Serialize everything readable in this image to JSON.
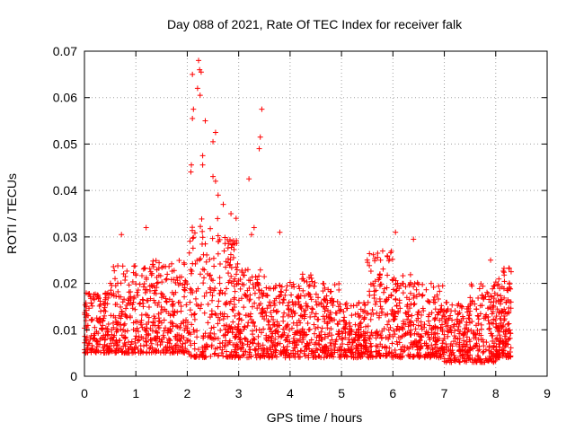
{
  "chart_data": {
    "type": "scatter",
    "title": "Day 088 of 2021, Rate Of TEC Index for receiver falk",
    "xlabel": "GPS time / hours",
    "ylabel": "ROTI / TECUs",
    "xlim": [
      0,
      9
    ],
    "ylim": [
      0,
      0.07
    ],
    "xticks": [
      0,
      1,
      2,
      3,
      4,
      5,
      6,
      7,
      8,
      9
    ],
    "yticks": [
      0,
      0.01,
      0.02,
      0.03,
      0.04,
      0.05,
      0.06,
      0.07
    ],
    "ytick_labels": [
      "0",
      "0.01",
      "0.02",
      "0.03",
      "0.04",
      "0.05",
      "0.06",
      "0.07"
    ],
    "grid": true,
    "marker": "+",
    "color": "#ff0000",
    "series": [
      {
        "name": "ROTI",
        "notable_points": [
          [
            0.72,
            0.0305
          ],
          [
            1.2,
            0.032
          ],
          [
            2.22,
            0.068
          ],
          [
            2.24,
            0.066
          ],
          [
            2.27,
            0.0655
          ],
          [
            2.1,
            0.065
          ],
          [
            2.2,
            0.062
          ],
          [
            2.25,
            0.0605
          ],
          [
            2.12,
            0.0575
          ],
          [
            2.1,
            0.0555
          ],
          [
            2.35,
            0.055
          ],
          [
            2.55,
            0.0525
          ],
          [
            2.5,
            0.0505
          ],
          [
            2.08,
            0.0455
          ],
          [
            2.07,
            0.044
          ],
          [
            2.3,
            0.0475
          ],
          [
            2.3,
            0.0455
          ],
          [
            2.5,
            0.043
          ],
          [
            2.55,
            0.042
          ],
          [
            2.6,
            0.039
          ],
          [
            2.7,
            0.037
          ],
          [
            2.85,
            0.035
          ],
          [
            2.95,
            0.034
          ],
          [
            3.45,
            0.0575
          ],
          [
            3.42,
            0.0515
          ],
          [
            3.4,
            0.049
          ],
          [
            3.2,
            0.0425
          ],
          [
            3.3,
            0.032
          ],
          [
            3.25,
            0.0305
          ],
          [
            3.8,
            0.031
          ],
          [
            6.05,
            0.031
          ],
          [
            6.4,
            0.0295
          ],
          [
            7.9,
            0.025
          ],
          [
            8.3,
            0.0225
          ]
        ],
        "activity_windows": [
          {
            "x_range": [
              0.0,
              0.5
            ],
            "y_range": [
              0.005,
              0.018
            ]
          },
          {
            "x_range": [
              0.5,
              1.0
            ],
            "y_range": [
              0.005,
              0.024
            ]
          },
          {
            "x_range": [
              1.0,
              1.5
            ],
            "y_range": [
              0.005,
              0.025
            ]
          },
          {
            "x_range": [
              1.5,
              2.0
            ],
            "y_range": [
              0.005,
              0.025
            ]
          },
          {
            "x_range": [
              2.0,
              2.6
            ],
            "y_range": [
              0.004,
              0.034
            ]
          },
          {
            "x_range": [
              2.6,
              3.0
            ],
            "y_range": [
              0.004,
              0.03
            ]
          },
          {
            "x_range": [
              3.0,
              3.5
            ],
            "y_range": [
              0.004,
              0.023
            ]
          },
          {
            "x_range": [
              3.5,
              4.0
            ],
            "y_range": [
              0.004,
              0.02
            ]
          },
          {
            "x_range": [
              4.0,
              4.5
            ],
            "y_range": [
              0.004,
              0.022
            ]
          },
          {
            "x_range": [
              4.5,
              5.0
            ],
            "y_range": [
              0.004,
              0.02
            ]
          },
          {
            "x_range": [
              5.0,
              5.5
            ],
            "y_range": [
              0.004,
              0.016
            ]
          },
          {
            "x_range": [
              5.5,
              6.0
            ],
            "y_range": [
              0.004,
              0.027
            ]
          },
          {
            "x_range": [
              6.0,
              6.5
            ],
            "y_range": [
              0.004,
              0.022
            ]
          },
          {
            "x_range": [
              6.5,
              7.0
            ],
            "y_range": [
              0.004,
              0.02
            ]
          },
          {
            "x_range": [
              7.0,
              7.5
            ],
            "y_range": [
              0.003,
              0.016
            ]
          },
          {
            "x_range": [
              7.5,
              8.0
            ],
            "y_range": [
              0.003,
              0.02
            ]
          },
          {
            "x_range": [
              8.0,
              8.3
            ],
            "y_range": [
              0.004,
              0.024
            ]
          }
        ]
      }
    ]
  }
}
